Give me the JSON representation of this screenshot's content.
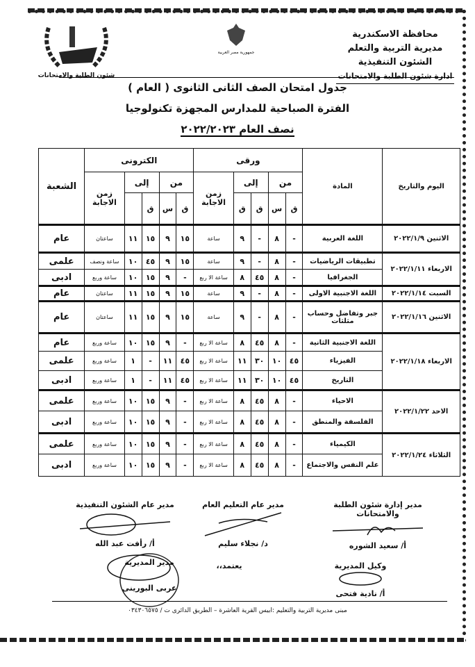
{
  "header": {
    "org_lines": [
      "محافظة الاسكندرية",
      "مديرية التربية والتعلم",
      "الشئون التنفيذية"
    ],
    "department": "ادارة شئون الطلبة والامتحانات",
    "emblem_caption": "جمهورية مصر العربية",
    "logo_caption": "شئون الطلبة والامتحانات"
  },
  "titles": {
    "line1": "جدول امتحان الصف الثانى الثانوى ( العام )",
    "line2": "الفترة الصباحية للمدارس المجهزة تكنولوجيا",
    "line3": "نصف العام ٢٠٢٢/٢٠٢٣"
  },
  "table": {
    "headers": {
      "date": "اليوم والتاريخ",
      "subject": "المادة",
      "paper": "ورقى",
      "electronic": "الكترونى",
      "from": "من",
      "to": "إلى",
      "duration": "زمن الاجابة",
      "branch": "الشعبة",
      "minute": "ق",
      "hour": "س"
    },
    "days": [
      {
        "date": "الاثنين ٢٠٢٢/١/٩",
        "exams": [
          {
            "subject": "اللغة العربية",
            "paper": [
              "-",
              "٨",
              "-",
              "٩",
              "ساعة"
            ],
            "electronic": [
              "١٥",
              "٩",
              "١٥",
              "١١",
              "ساعتان"
            ],
            "branch": "عام"
          }
        ]
      },
      {
        "date": "الاربعاء ٢٠٢٢/١/١١",
        "exams": [
          {
            "subject": "تطبيقات الرياضيات",
            "paper": [
              "-",
              "٨",
              "-",
              "٩",
              "ساعة"
            ],
            "electronic": [
              "١٥",
              "٩",
              "٤٥",
              "١٠",
              "ساعة ونصف"
            ],
            "branch": "علمى"
          },
          {
            "subject": "الجغرافيا",
            "paper": [
              "-",
              "٨",
              "٤٥",
              "٨",
              "ساعة الا ربع"
            ],
            "electronic": [
              "-",
              "٩",
              "١٥",
              "١٠",
              "ساعة وربع"
            ],
            "branch": "ادبى"
          }
        ]
      },
      {
        "date": "السبت ٢٠٢٢/١/١٤",
        "exams": [
          {
            "subject": "اللغة الاجنبية الاولى",
            "paper": [
              "-",
              "٨",
              "-",
              "٩",
              "ساعة"
            ],
            "electronic": [
              "١٥",
              "٩",
              "١٥",
              "١١",
              "ساعتان"
            ],
            "branch": "عام"
          }
        ]
      },
      {
        "date": "الاثنين ٢٠٢٢/١/١٦",
        "exams": [
          {
            "subject": "جبر وتفاضل وحساب مثلثات",
            "paper": [
              "-",
              "٨",
              "-",
              "٩",
              "ساعة"
            ],
            "electronic": [
              "١٥",
              "٩",
              "١٥",
              "١١",
              "ساعتان"
            ],
            "branch": "عام"
          }
        ]
      },
      {
        "date": "الاربعاء ٢٠٢٢/١/١٨",
        "exams": [
          {
            "subject": "اللغة الاجنبية الثانية",
            "paper": [
              "-",
              "٨",
              "٤٥",
              "٨",
              "ساعة الا ربع"
            ],
            "electronic": [
              "-",
              "٩",
              "١٥",
              "١٠",
              "ساعة وربع"
            ],
            "branch": "عام"
          },
          {
            "subject": "الفيزياء",
            "paper": [
              "٤٥",
              "١٠",
              "٣٠",
              "١١",
              "ساعة الا ربع"
            ],
            "electronic": [
              "٤٥",
              "١١",
              "-",
              "١",
              "ساعة وربع"
            ],
            "branch": "علمى"
          },
          {
            "subject": "التاريخ",
            "paper": [
              "٤٥",
              "١٠",
              "٣٠",
              "١١",
              "ساعة الا ربع"
            ],
            "electronic": [
              "٤٥",
              "١١",
              "-",
              "١",
              "ساعة وربع"
            ],
            "branch": "ادبى"
          }
        ]
      },
      {
        "date": "الاحد ٢٠٢٢/١/٢٢",
        "exams": [
          {
            "subject": "الاحياء",
            "paper": [
              "-",
              "٨",
              "٤٥",
              "٨",
              "ساعة الا ربع"
            ],
            "electronic": [
              "-",
              "٩",
              "١٥",
              "١٠",
              "ساعة وربع"
            ],
            "branch": "علمى"
          },
          {
            "subject": "الفلسفة والمنطق",
            "paper": [
              "-",
              "٨",
              "٤٥",
              "٨",
              "ساعة الا ربع"
            ],
            "electronic": [
              "-",
              "٩",
              "١٥",
              "١٠",
              "ساعة وربع"
            ],
            "branch": "ادبى"
          }
        ]
      },
      {
        "date": "الثلاثاء ٢٠٢٢/١/٢٤",
        "exams": [
          {
            "subject": "الكيمياء",
            "paper": [
              "-",
              "٨",
              "٤٥",
              "٨",
              "ساعة الا ربع"
            ],
            "electronic": [
              "-",
              "٩",
              "١٥",
              "١٠",
              "ساعة وربع"
            ],
            "branch": "علمى"
          },
          {
            "subject": "علم النفس والاجتماع",
            "paper": [
              "-",
              "٨",
              "٤٥",
              "٨",
              "ساعة الا ربع"
            ],
            "electronic": [
              "-",
              "٩",
              "١٥",
              "١٠",
              "ساعة وربع"
            ],
            "branch": "ادبى"
          }
        ]
      }
    ]
  },
  "signatures": {
    "s1_title": "مدير إدارة شئون الطلبة والامتحانات",
    "s1_name": "أ/ سعيد الشوره",
    "s2_title": "مدير عام التعليم العام",
    "s2_name": "د/ نجلاء سليم",
    "s3_title": "مدير عام الشئون التنفيذية",
    "s3_name": "أ/ رأفت عبد الله",
    "s4_title": "وكيل المديرية",
    "s4_name": "أ/ نادية فتحى",
    "approve": "يعتمد،،",
    "s5_title": "مدير المديرية",
    "s5_name": "عربى البورينى"
  },
  "footer": {
    "address": "مبنى مديرية التربية والتعليم :ابيس القرية العاشرة – الطريق الدائرى ت / ٠٣٤٣٠٦٥٧٥"
  }
}
